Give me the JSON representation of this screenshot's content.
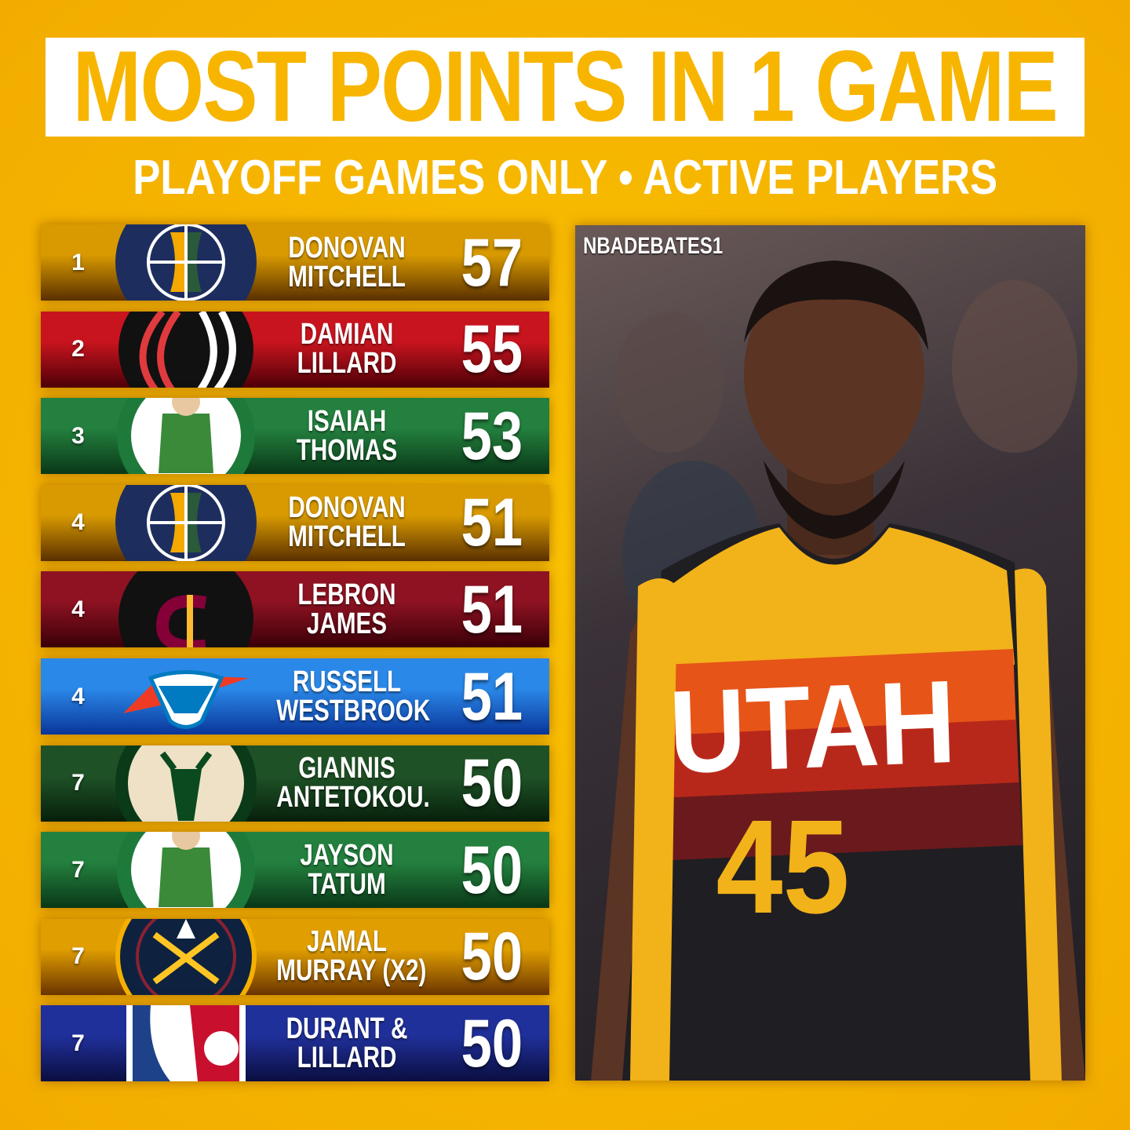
{
  "title": "MOST POINTS IN 1 GAME",
  "subtitle": "PLAYOFF GAMES ONLY • ACTIVE PLAYERS",
  "watermark": "NBADEBATES1",
  "photo": {
    "jersey_text": "UTAH",
    "jersey_number": "45"
  },
  "rows": [
    {
      "rank": "1",
      "line1": "DONOVAN",
      "line2": "MITCHELL",
      "points": "57",
      "team": "jazz",
      "c1": "#D89A00",
      "c2": "#5A3000"
    },
    {
      "rank": "2",
      "line1": "DAMIAN",
      "line2": "LILLARD",
      "points": "55",
      "team": "blazers",
      "c1": "#C8141E",
      "c2": "#4E0008"
    },
    {
      "rank": "3",
      "line1": "ISAIAH",
      "line2": "THOMAS",
      "points": "53",
      "team": "celtics",
      "c1": "#23803E",
      "c2": "#0A3818"
    },
    {
      "rank": "4",
      "line1": "DONOVAN",
      "line2": "MITCHELL",
      "points": "51",
      "team": "jazz",
      "c1": "#D89A00",
      "c2": "#5A3000"
    },
    {
      "rank": "4",
      "line1": "LEBRON",
      "line2": "JAMES",
      "points": "51",
      "team": "cavaliers",
      "c1": "#8E1222",
      "c2": "#3A0008"
    },
    {
      "rank": "4",
      "line1": "RUSSELL",
      "line2": "WESTBROOK",
      "points": "51",
      "team": "thunder",
      "c1": "#2A88E8",
      "c2": "#0A369A"
    },
    {
      "rank": "7",
      "line1": "GIANNIS",
      "line2": "ANTETOKOU.",
      "points": "50",
      "team": "bucks",
      "c1": "#1E5226",
      "c2": "#07200C"
    },
    {
      "rank": "7",
      "line1": "JAYSON",
      "line2": "TATUM",
      "points": "50",
      "team": "celtics",
      "c1": "#23803E",
      "c2": "#0A3818"
    },
    {
      "rank": "7",
      "line1": "JAMAL",
      "line2": "MURRAY (X2)",
      "points": "50",
      "team": "nuggets",
      "c1": "#E09E00",
      "c2": "#6A3400"
    },
    {
      "rank": "7",
      "line1": "DURANT &",
      "line2": "LILLARD",
      "points": "50",
      "team": "nba",
      "c1": "#20309A",
      "c2": "#0A0E40"
    }
  ]
}
